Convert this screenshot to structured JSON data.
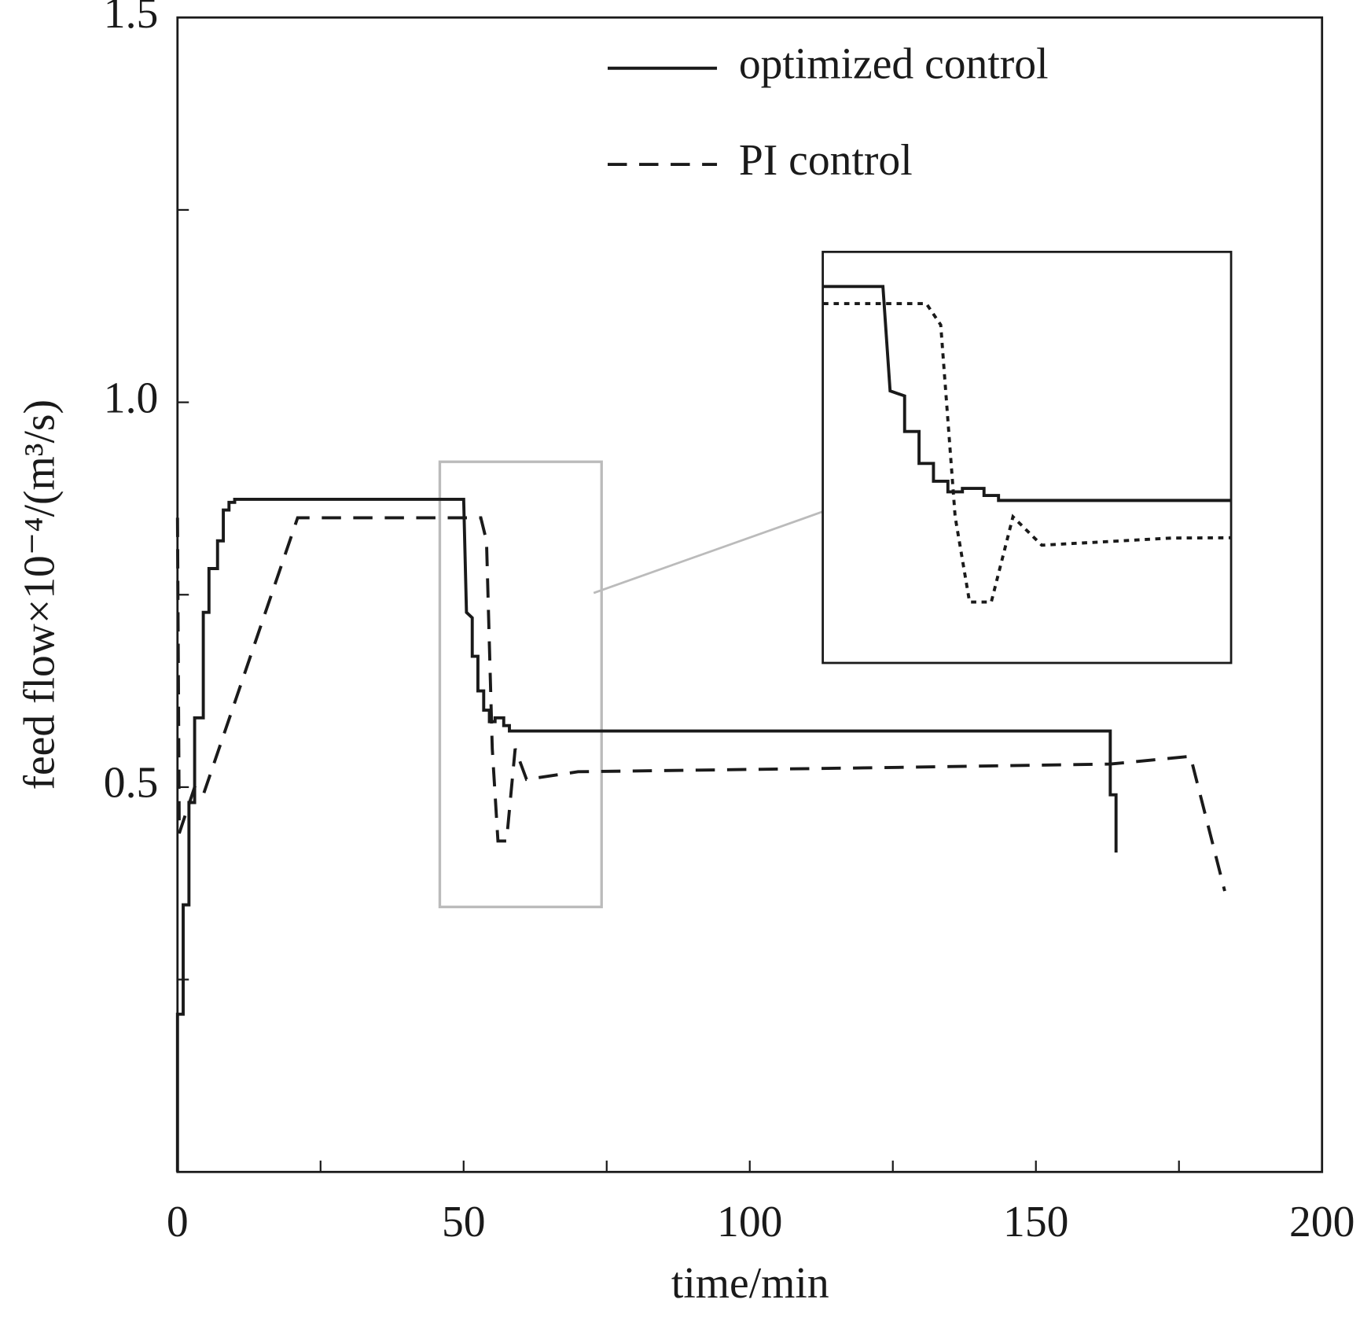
{
  "chart_data": {
    "type": "line",
    "xlabel": "time/min",
    "ylabel": "feed flow×10⁻⁴/(m³/s)",
    "xlim": [
      0,
      200
    ],
    "xticks": [
      0,
      50,
      100,
      150,
      200
    ],
    "xminor_ticks": [
      25,
      75,
      125,
      175
    ],
    "ylim": [
      0,
      1.5
    ],
    "yticks": [
      {
        "value": 0.5,
        "label": "0.5"
      },
      {
        "value": 1,
        "label": "1.0"
      },
      {
        "value": 1.5,
        "label": "1.5"
      }
    ],
    "yminor_ticks": [
      0.25,
      0.75,
      1.25
    ],
    "grid": false,
    "legend": "top",
    "series": [
      {
        "name": "optimized control",
        "color": "#1a1a1a",
        "style": "solid",
        "x": [
          0,
          0,
          1,
          1,
          2,
          2,
          3,
          3,
          4.5,
          4.5,
          5.5,
          5.5,
          7,
          7,
          8,
          8,
          9,
          9,
          10,
          10,
          50,
          50.5,
          51.5,
          51.5,
          52.5,
          52.5,
          53.5,
          53.5,
          54.5,
          54.5,
          55.5,
          55.5,
          57,
          57,
          58,
          58,
          163,
          163,
          164,
          164
        ],
        "values": [
          0,
          0.205,
          0.205,
          0.347,
          0.347,
          0.48,
          0.48,
          0.59,
          0.59,
          0.727,
          0.727,
          0.784,
          0.784,
          0.82,
          0.82,
          0.86,
          0.86,
          0.87,
          0.87,
          0.874,
          0.874,
          0.727,
          0.72,
          0.67,
          0.67,
          0.625,
          0.625,
          0.6,
          0.6,
          0.585,
          0.585,
          0.59,
          0.59,
          0.58,
          0.58,
          0.573,
          0.573,
          0.49,
          0.49,
          0.415
        ]
      },
      {
        "name": "PI control",
        "color": "#1a1a1a",
        "style": "dashed",
        "x": [
          0,
          0.3,
          3,
          4.5,
          21,
          53,
          54,
          55,
          56,
          57.5,
          59,
          61,
          70,
          120,
          163,
          177,
          183
        ],
        "values": [
          0.85,
          0.44,
          0.5,
          0.49,
          0.85,
          0.85,
          0.82,
          0.55,
          0.43,
          0.43,
          0.55,
          0.51,
          0.52,
          0.525,
          0.53,
          0.54,
          0.365
        ]
      }
    ]
  }
}
